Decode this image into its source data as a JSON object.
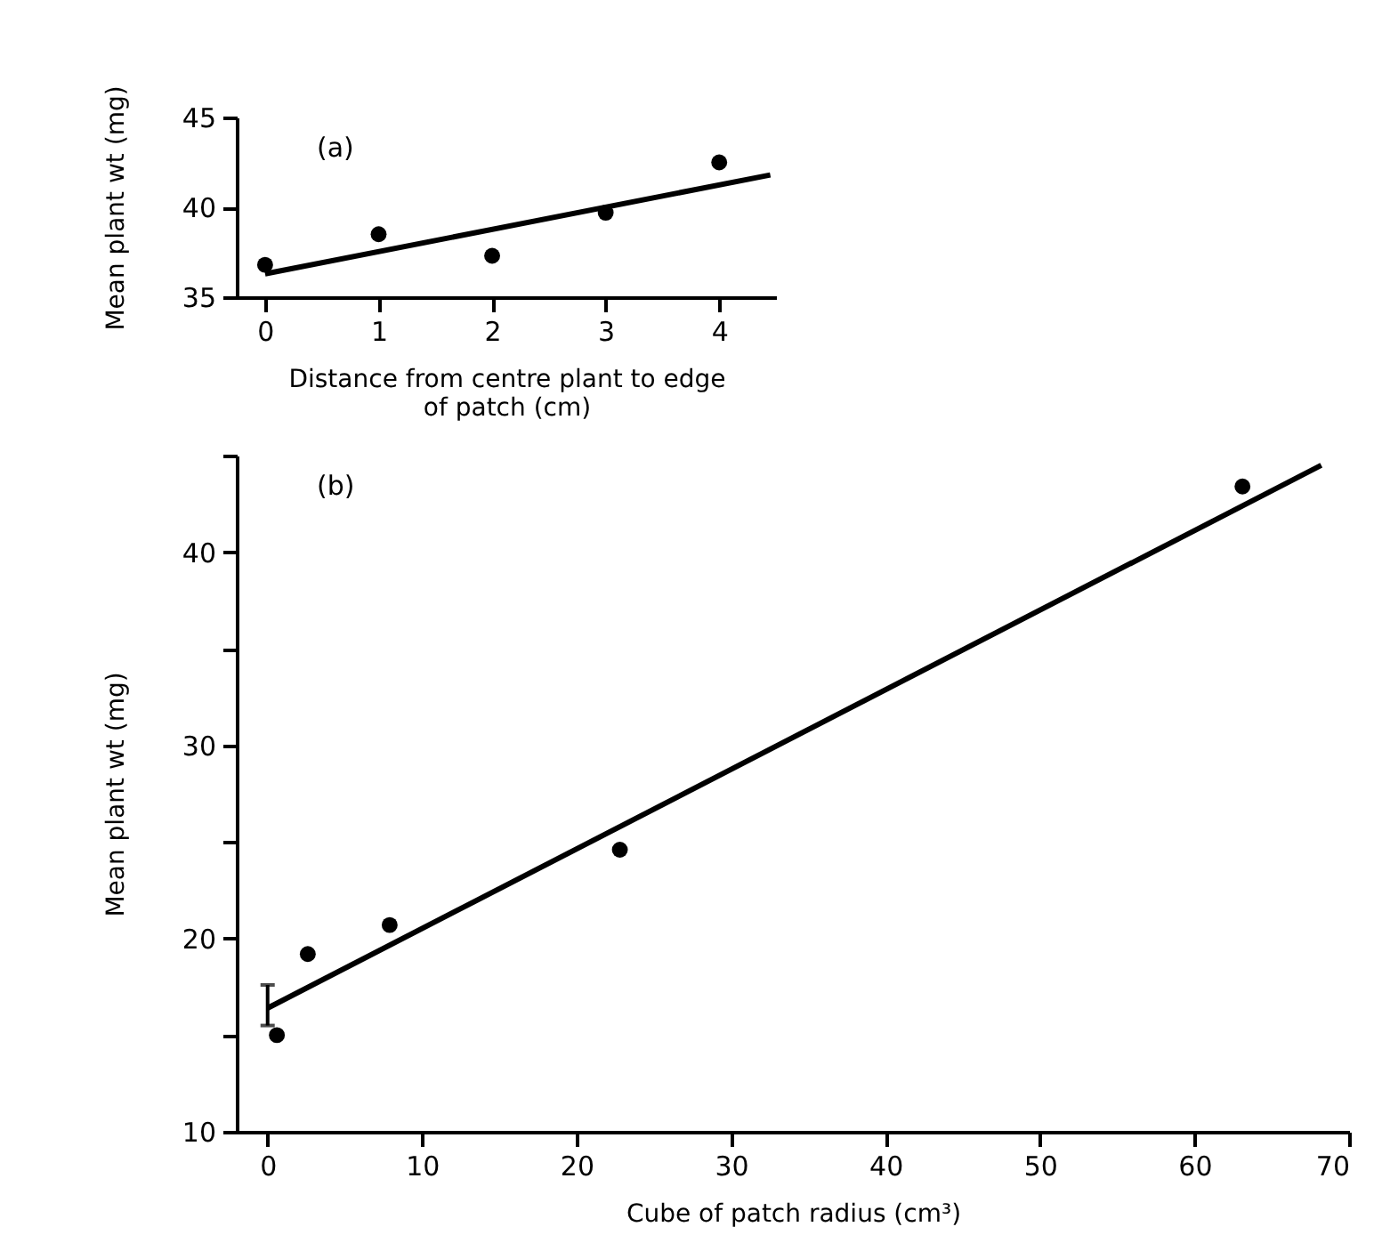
{
  "chart_data": [
    {
      "type": "scatter",
      "annotations": [
        "(a)"
      ],
      "xlabel": "Distance from centre plant to edge\nof patch (cm)",
      "ylabel": "Mean plant wt (mg)",
      "xlim": [
        -0.25,
        4.5
      ],
      "ylim": [
        35,
        45
      ],
      "xticks": [
        0,
        1,
        2,
        3,
        4
      ],
      "yticks": [
        35,
        40,
        45
      ],
      "series": [
        {
          "marker": "circle",
          "color": "#000000",
          "x": [
            0,
            1,
            2,
            3,
            4
          ],
          "values": [
            36.8,
            38.5,
            37.3,
            39.7,
            42.5
          ]
        },
        {
          "type": "line",
          "color": "#000000",
          "x": [
            0,
            4.45
          ],
          "values": [
            36.3,
            41.8
          ]
        }
      ]
    },
    {
      "type": "scatter",
      "annotations": [
        "(b)"
      ],
      "xlabel": "Cube of patch radius (cm³)",
      "ylabel": "Mean plant wt (mg)",
      "xlim": [
        -2,
        70
      ],
      "ylim": [
        10,
        45
      ],
      "xticks": [
        0,
        10,
        20,
        30,
        40,
        50,
        60,
        70
      ],
      "yticks": [
        10,
        {
          "value": 15,
          "label": null
        },
        20,
        {
          "value": 25,
          "label": null
        },
        30,
        {
          "value": 35,
          "label": null
        },
        40,
        {
          "value": 45,
          "label": null
        }
      ],
      "series": [
        {
          "marker": "circle",
          "color": "#000000",
          "x": [
            0.6,
            2.6,
            7.9,
            22.8,
            63.1
          ],
          "values": [
            15.0,
            19.2,
            20.7,
            24.6,
            43.4
          ]
        },
        {
          "type": "line",
          "color": "#000000",
          "x": [
            0,
            68.2
          ],
          "values": [
            16.4,
            44.5
          ],
          "errors": [
            [
              15.5,
              17.6
            ],
            null
          ]
        }
      ]
    }
  ]
}
